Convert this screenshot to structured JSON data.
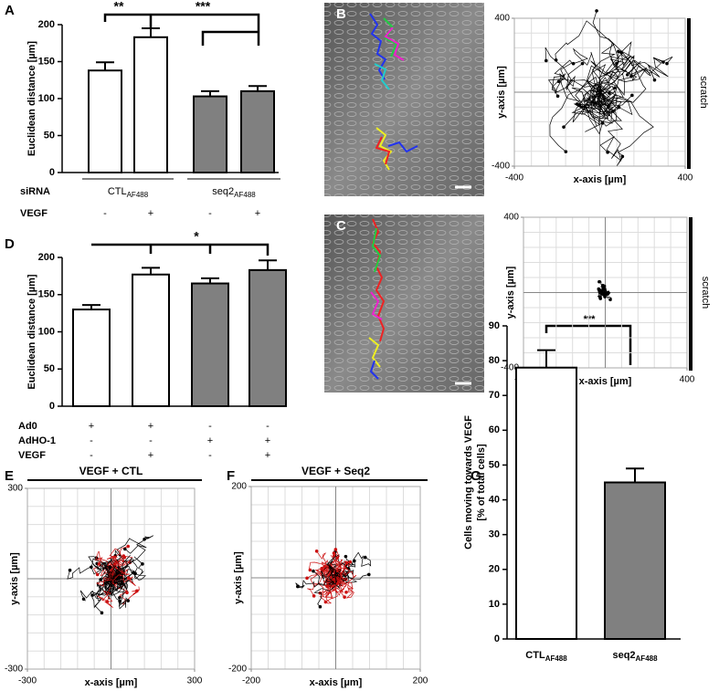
{
  "panel_labels": [
    "A",
    "B",
    "C",
    "D",
    "E",
    "F",
    "G"
  ],
  "chart_data": [
    {
      "type": "bar",
      "ylabel": "Euclidean distance [µm]",
      "ylim": [
        0,
        200
      ],
      "yticks": [
        0,
        50,
        100,
        150,
        200
      ],
      "values": [
        138,
        183,
        103,
        110
      ],
      "errors": [
        11,
        12,
        7,
        7
      ],
      "colors": [
        "#ffffff",
        "#ffffff",
        "#808080",
        "#808080"
      ],
      "rows": [
        {
          "name": "siRNA",
          "groups": [
            {
              "text": "CTL",
              "sub": "AF488"
            },
            {
              "text": "seq2",
              "sub": "AF488"
            }
          ]
        },
        {
          "name": "VEGF",
          "signs": [
            "-",
            "+",
            "-",
            "+"
          ]
        }
      ],
      "annotations": [
        "**",
        "***"
      ]
    },
    {
      "type": "track",
      "xlabel": "x-axis [µm]",
      "ylabel": "y-axis [µm]",
      "xlim": [
        -400,
        400
      ],
      "ylim": [
        -400,
        400
      ],
      "xticks": [
        -400,
        400
      ],
      "yticks": [
        -400,
        400
      ],
      "side_label": "scratch",
      "track_colors": [
        "#000000"
      ]
    },
    {
      "type": "track",
      "xlabel": "x-axis [µm]",
      "ylabel": "y-axis [µm]",
      "xlim": [
        -400,
        400
      ],
      "ylim": [
        -400,
        400
      ],
      "xticks": [
        -400,
        400
      ],
      "yticks": [
        -400,
        400
      ],
      "side_label": "scratch",
      "track_colors": [
        "#000000"
      ]
    },
    {
      "type": "bar",
      "ylabel": "Euclidean distance [µm]",
      "ylim": [
        0,
        200
      ],
      "yticks": [
        0,
        50,
        100,
        150,
        200
      ],
      "values": [
        130,
        177,
        165,
        183
      ],
      "errors": [
        6,
        9,
        7,
        13
      ],
      "colors": [
        "#ffffff",
        "#ffffff",
        "#808080",
        "#808080"
      ],
      "rows": [
        {
          "name": "Ad0",
          "signs": [
            "+",
            "+",
            "-",
            "-"
          ]
        },
        {
          "name": "AdHO-1",
          "signs": [
            "-",
            "-",
            "+",
            "+"
          ]
        },
        {
          "name": "VEGF",
          "signs": [
            "-",
            "+",
            "-",
            "+"
          ]
        }
      ],
      "annotations": [
        "*"
      ]
    },
    {
      "type": "track",
      "title": "VEGF + CTL",
      "xlabel": "x-axis [µm]",
      "ylabel": "y-axis [µm]",
      "xlim": [
        -300,
        300
      ],
      "ylim": [
        -300,
        300
      ],
      "xticks": [
        -300,
        300
      ],
      "yticks": [
        -300,
        300
      ],
      "track_colors": [
        "#000000",
        "#000000",
        "#cc1111"
      ]
    },
    {
      "type": "track",
      "title": "VEGF + Seq2",
      "xlabel": "x-axis [µm]",
      "ylabel": "y-axis [µm]",
      "xlim": [
        -200,
        200
      ],
      "ylim": [
        -200,
        200
      ],
      "xticks": [
        -200,
        200
      ],
      "yticks": [
        -200,
        200
      ],
      "track_colors": [
        "#000000",
        "#cc1111",
        "#cc1111"
      ]
    },
    {
      "type": "bar",
      "ylabel": [
        "Cells moving towards VEGF",
        "[% of total cells]"
      ],
      "ylim": [
        0,
        90
      ],
      "yticks": [
        0,
        10,
        20,
        30,
        40,
        50,
        60,
        70,
        80,
        90
      ],
      "values": [
        78,
        45
      ],
      "errors": [
        5,
        4
      ],
      "colors": [
        "#ffffff",
        "#808080"
      ],
      "categories": [
        "CTL",
        "seq2"
      ],
      "category_subscripts": [
        "AF488",
        "AF488"
      ],
      "annotations": [
        "***"
      ]
    }
  ]
}
